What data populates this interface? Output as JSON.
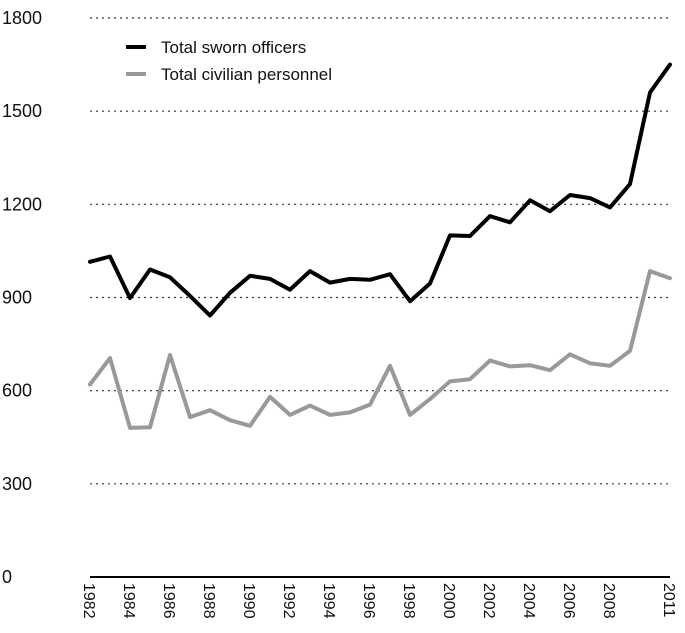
{
  "chart_data": {
    "type": "line",
    "title": "",
    "xlabel": "",
    "ylabel": "",
    "ylim": [
      0,
      1800
    ],
    "yticks": [
      0,
      300,
      600,
      900,
      1200,
      1500,
      1800
    ],
    "ytick_labels": [
      "0",
      "300",
      "600",
      "900",
      "1200",
      "1500",
      "1800"
    ],
    "grid": "horizontal dotted",
    "legend_position": "top-left",
    "x": [
      1982,
      1983,
      1984,
      1985,
      1986,
      1987,
      1988,
      1989,
      1990,
      1991,
      1992,
      1993,
      1994,
      1995,
      1996,
      1997,
      1998,
      1999,
      2000,
      2001,
      2002,
      2003,
      2004,
      2005,
      2006,
      2007,
      2008,
      2009,
      2010,
      2011
    ],
    "xtick_labels": [
      "1982",
      "1984",
      "1986",
      "1988",
      "1990",
      "1992",
      "1994",
      "1996",
      "1998",
      "2000",
      "2002",
      "2004",
      "2006",
      "2008",
      "2011"
    ],
    "series": [
      {
        "name": "Total sworn officers",
        "color": "#000000",
        "values": [
          1015,
          1032,
          898,
          990,
          965,
          905,
          842,
          915,
          970,
          960,
          925,
          985,
          948,
          960,
          957,
          975,
          888,
          945,
          1100,
          1098,
          1162,
          1142,
          1213,
          1178,
          1230,
          1220,
          1190,
          1265,
          1560,
          1650
        ]
      },
      {
        "name": "Total civilian personnel",
        "color": "#999999",
        "values": [
          620,
          705,
          480,
          482,
          715,
          515,
          537,
          505,
          487,
          580,
          522,
          552,
          522,
          530,
          555,
          680,
          522,
          573,
          630,
          637,
          697,
          678,
          682,
          666,
          717,
          688,
          680,
          728,
          985,
          962
        ]
      }
    ]
  }
}
